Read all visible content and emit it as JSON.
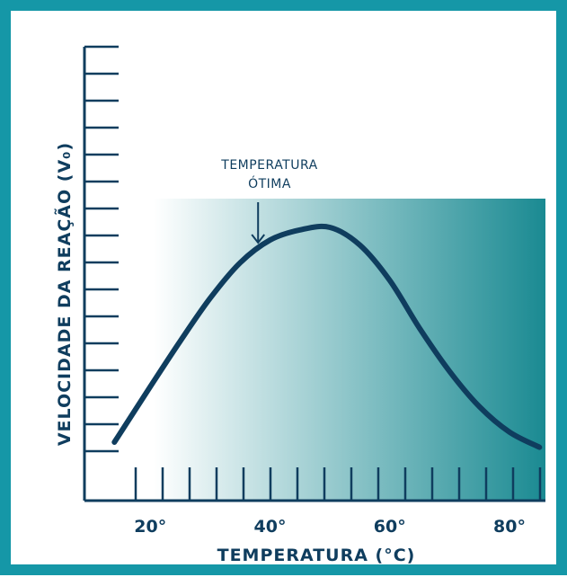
{
  "chart_data": {
    "type": "line",
    "title": "",
    "xlabel": "TEMPERATURA (°C)",
    "ylabel": "VELOCIDADE DA REAÇÃO (V₀)",
    "x_tick_labels": [
      "20°",
      "40°",
      "60°",
      "80°"
    ],
    "x_ticks": [
      20,
      40,
      60,
      80
    ],
    "xlim": [
      9,
      86
    ],
    "grid": false,
    "legend": "none",
    "series": [
      {
        "values_x": [
          14,
          20,
          25,
          30,
          35,
          40,
          45,
          50,
          55,
          60,
          65,
          70,
          75,
          80,
          85
        ],
        "values_y": [
          0.15,
          0.37,
          0.55,
          0.72,
          0.86,
          0.95,
          0.99,
          1.0,
          0.93,
          0.79,
          0.6,
          0.43,
          0.29,
          0.19,
          0.13
        ]
      }
    ],
    "annotation": {
      "line1": "TEMPERATURA",
      "line2": "ÓTIMA",
      "x": 38
    },
    "shaded_region_x": [
      9,
      86
    ]
  },
  "colors": {
    "frame": "#1597a7",
    "curve": "#0f3d5e",
    "axis": "#0f3d5e",
    "gradient_start": "#ffffff",
    "gradient_end": "#1a8a92"
  }
}
